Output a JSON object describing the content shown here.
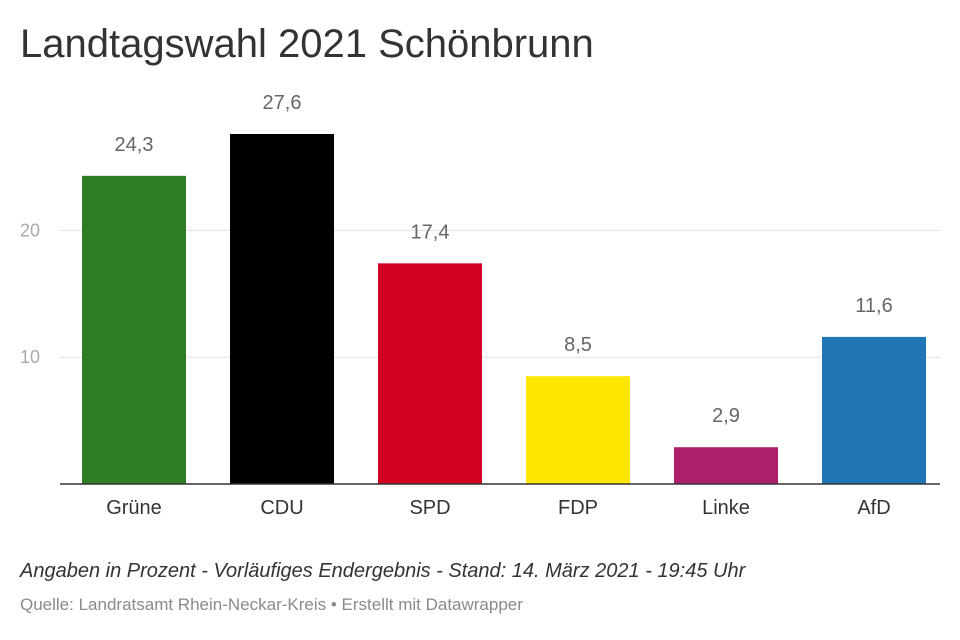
{
  "chart_data": {
    "type": "bar",
    "title": "Landtagswahl 2021 Schönbrunn",
    "categories": [
      "Grüne",
      "CDU",
      "SPD",
      "FDP",
      "Linke",
      "AfD"
    ],
    "values": [
      24.3,
      27.6,
      17.4,
      8.5,
      2.9,
      11.6
    ],
    "value_labels": [
      "24,3",
      "27,6",
      "17,4",
      "8,5",
      "2,9",
      "11,6"
    ],
    "colors": [
      "#2e7d24",
      "#000000",
      "#d40022",
      "#ffe600",
      "#ad1f6b",
      "#2076b4"
    ],
    "yticks": [
      10,
      20
    ],
    "ytick_labels": [
      "10",
      "20"
    ],
    "ylim": [
      0,
      27.6
    ],
    "grid": true,
    "xlabel": "",
    "ylabel": ""
  },
  "footer": {
    "note": "Angaben in Prozent - Vorläufiges Endergebnis - Stand: 14. März 2021 - 19:45 Uhr",
    "source": "Quelle: Landratsamt Rhein-Neckar-Kreis • Erstellt mit Datawrapper"
  }
}
